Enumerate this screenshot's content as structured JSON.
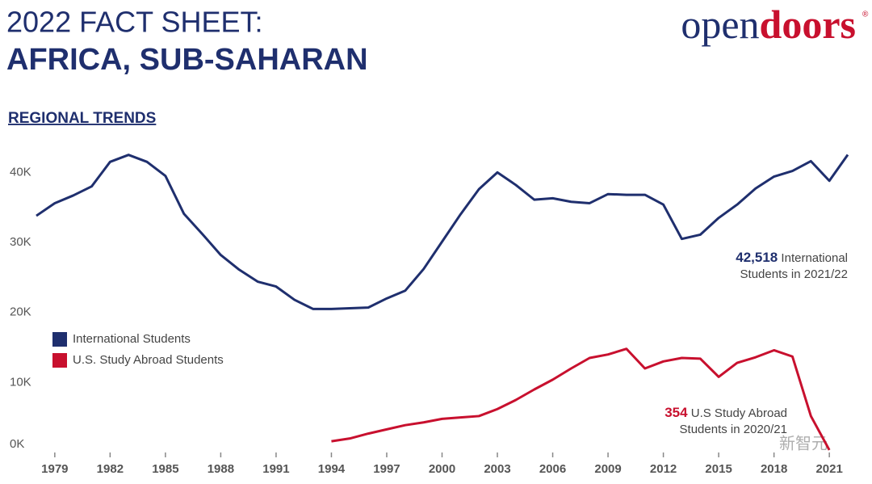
{
  "header": {
    "title": "2022 FACT SHEET:",
    "subtitle": "AFRICA, SUB-SAHARAN",
    "logo": [
      "open",
      "doors"
    ],
    "logo_mark": "®",
    "section": "REGIONAL TRENDS",
    "watermark": "新智元"
  },
  "chart_data": {
    "type": "line",
    "xlim": [
      1978,
      2022
    ],
    "xticks": [
      1979,
      1982,
      1985,
      1988,
      1991,
      1994,
      1997,
      2000,
      2003,
      2006,
      2009,
      2012,
      2015,
      2018,
      2021
    ],
    "ylim": [
      0,
      45000
    ],
    "yticks": [
      {
        "value": 0,
        "label": "0K"
      },
      {
        "value": 10000,
        "label": "10K"
      },
      {
        "value": 20000,
        "label": "20K"
      },
      {
        "value": 30000,
        "label": "30K"
      },
      {
        "value": 40000,
        "label": "40K"
      }
    ],
    "series": [
      {
        "name": "International Students",
        "color": "#1f2f6e",
        "x": [
          1978,
          1979,
          1980,
          1981,
          1982,
          1983,
          1984,
          1985,
          1986,
          1987,
          1988,
          1989,
          1990,
          1991,
          1992,
          1993,
          1994,
          1995,
          1996,
          1997,
          1998,
          1999,
          2000,
          2001,
          2002,
          2003,
          2004,
          2005,
          2006,
          2007,
          2008,
          2009,
          2010,
          2011,
          2012,
          2013,
          2014,
          2015,
          2016,
          2017,
          2018,
          2019,
          2020,
          2021,
          2022
        ],
        "values": [
          33800,
          35600,
          36700,
          38000,
          41500,
          42500,
          41500,
          39500,
          34100,
          31200,
          28200,
          26100,
          24400,
          23700,
          21800,
          20500,
          20500,
          20600,
          20700,
          22000,
          23100,
          26200,
          30100,
          34000,
          37600,
          40000,
          38200,
          36100,
          36300,
          35800,
          35600,
          36900,
          36800,
          36800,
          35400,
          30500,
          31100,
          33500,
          35400,
          37700,
          39400,
          40200,
          41600,
          38800,
          42518
        ]
      },
      {
        "name": "U.S. Study Abroad Students",
        "color": "#c8102e",
        "x": [
          1994,
          1995,
          1996,
          1997,
          1998,
          1999,
          2000,
          2001,
          2002,
          2003,
          2004,
          2005,
          2006,
          2007,
          2008,
          2009,
          2010,
          2011,
          2012,
          2013,
          2014,
          2015,
          2016,
          2017,
          2018,
          2019,
          2020,
          2021
        ],
        "values": [
          1600,
          2000,
          2700,
          3300,
          3900,
          4300,
          4800,
          5000,
          5200,
          6200,
          7500,
          9000,
          10400,
          12000,
          13500,
          14000,
          14800,
          12000,
          13000,
          13500,
          13400,
          10800,
          12800,
          13600,
          14600,
          13700,
          5200,
          354
        ]
      }
    ],
    "annotations": [
      {
        "value": "42,518",
        "text": " International",
        "text2": "Students in 2021/22"
      },
      {
        "value": "354",
        "text": " U.S Study Abroad",
        "text2": "Students in 2020/21"
      }
    ]
  }
}
